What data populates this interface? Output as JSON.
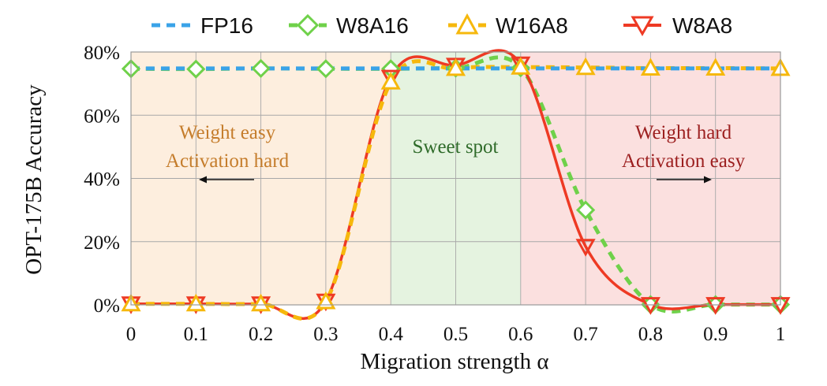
{
  "chart_data": {
    "type": "line",
    "title": "",
    "xlabel": "Migration strength α",
    "ylabel": "OPT-175B Accuracy",
    "x": [
      0,
      0.1,
      0.2,
      0.3,
      0.4,
      0.5,
      0.6,
      0.7,
      0.8,
      0.9,
      1
    ],
    "xticks": [
      "0",
      "0.1",
      "0.2",
      "0.3",
      "0.4",
      "0.5",
      "0.6",
      "0.7",
      "0.8",
      "0.9",
      "1"
    ],
    "yticks": [
      "0%",
      "20%",
      "40%",
      "60%",
      "80%"
    ],
    "ylim": [
      0,
      80
    ],
    "xlim": [
      0,
      1
    ],
    "grid": true,
    "legend_position": "top",
    "series": [
      {
        "name": "FP16",
        "color": "#3aa3e8",
        "marker": "none",
        "linestyle": "dashed",
        "values": [
          74.8,
          74.8,
          74.8,
          74.8,
          74.8,
          74.8,
          74.8,
          74.8,
          74.8,
          74.8,
          74.8
        ]
      },
      {
        "name": "W8A16",
        "color": "#6fd14a",
        "marker": "diamond",
        "linestyle": "dashed",
        "values": [
          74.7,
          74.6,
          74.8,
          74.7,
          74.7,
          74.9,
          75.0,
          30.0,
          0.1,
          0.1,
          0.1
        ]
      },
      {
        "name": "W16A8",
        "color": "#f6b80c",
        "marker": "triangle-up",
        "linestyle": "dashed",
        "values": [
          0.3,
          0.3,
          0.3,
          1.0,
          70.5,
          74.8,
          75.2,
          75.1,
          74.9,
          74.9,
          74.8
        ]
      },
      {
        "name": "W8A8",
        "color": "#ee3a24",
        "marker": "triangle-down",
        "linestyle": "solid",
        "values": [
          0.3,
          0.3,
          0.3,
          1.2,
          72.0,
          75.8,
          76.2,
          18.5,
          0.1,
          0.1,
          0.1
        ]
      }
    ],
    "regions": [
      {
        "name": "weight-easy-region",
        "range": [
          0,
          0.4
        ],
        "color": "#fdeede"
      },
      {
        "name": "sweet-spot-region",
        "range": [
          0.4,
          0.6
        ],
        "color": "#e5f3e0"
      },
      {
        "name": "weight-hard-region",
        "range": [
          0.6,
          1
        ],
        "color": "#fbe0df"
      }
    ],
    "annotations": {
      "left_line1": "Weight easy",
      "left_line2": "Activation hard",
      "middle": "Sweet spot",
      "right_line1": "Weight hard",
      "right_line2": "Activation easy",
      "left_color": "#c57d2c",
      "middle_color": "#2f6b2a",
      "right_color": "#9c1f1f"
    }
  }
}
